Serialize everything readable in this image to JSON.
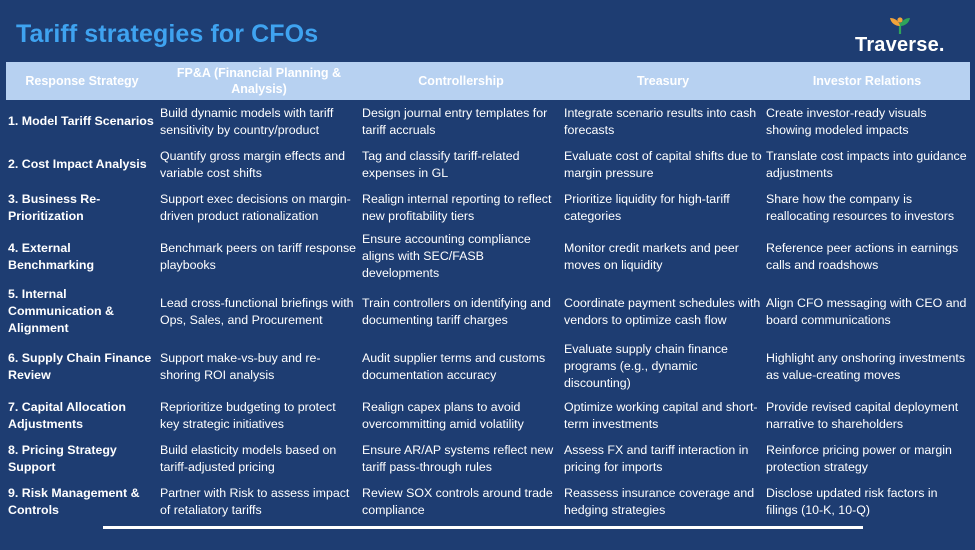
{
  "title": "Tariff strategies for CFOs",
  "logo": {
    "text": "Traverse.",
    "icon": "leaf-sprout-icon",
    "colors": {
      "leaf_orange": "#f2a33a",
      "leaf_green": "#2fa45a"
    }
  },
  "colors": {
    "background": "#1e3d72",
    "title": "#3fa3f0",
    "header_bg": "#b7d1f1",
    "text": "#ffffff"
  },
  "table": {
    "headers": [
      "Response Strategy",
      "FP&A (Financial Planning & Analysis)",
      "Controllership",
      "Treasury",
      "Investor Relations"
    ],
    "rows": [
      [
        "1. Model Tariff Scenarios",
        "Build dynamic models with tariff sensitivity by country/product",
        "Design journal entry templates for tariff accruals",
        "Integrate scenario results into cash forecasts",
        "Create investor-ready visuals showing modeled impacts"
      ],
      [
        "2. Cost Impact Analysis",
        "Quantify gross margin effects and variable cost shifts",
        "Tag and classify tariff-related expenses in GL",
        "Evaluate cost of capital shifts due to margin pressure",
        "Translate cost impacts into guidance adjustments"
      ],
      [
        "3. Business Re-Prioritization",
        "Support exec decisions on margin-driven product rationalization",
        "Realign internal reporting to reflect new profitability tiers",
        "Prioritize liquidity for high-tariff categories",
        "Share how the company is reallocating resources to investors"
      ],
      [
        "4. External Benchmarking",
        "Benchmark peers on tariff response playbooks",
        "Ensure accounting compliance aligns with SEC/FASB developments",
        "Monitor credit markets and peer moves on liquidity",
        "Reference peer actions in earnings calls and roadshows"
      ],
      [
        "5. Internal Communication & Alignment",
        "Lead cross-functional briefings with Ops, Sales, and Procurement",
        "Train controllers on identifying and documenting tariff charges",
        "Coordinate payment schedules with vendors to optimize cash flow",
        "Align CFO messaging with CEO and board communications"
      ],
      [
        "6. Supply Chain Finance Review",
        "Support make-vs-buy and re-shoring ROI analysis",
        "Audit supplier terms and customs documentation accuracy",
        "Evaluate supply chain finance programs (e.g., dynamic discounting)",
        "Highlight any onshoring investments as value-creating moves"
      ],
      [
        "7. Capital Allocation Adjustments",
        "Reprioritize budgeting to protect key strategic initiatives",
        "Realign capex plans to avoid overcommitting amid volatility",
        "Optimize working capital and short-term investments",
        "Provide revised capital deployment narrative to shareholders"
      ],
      [
        "8. Pricing Strategy Support",
        "Build elasticity models based on tariff-adjusted pricing",
        "Ensure AR/AP systems reflect new tariff pass-through rules",
        "Assess FX and tariff interaction in pricing for imports",
        "Reinforce pricing power or margin protection strategy"
      ],
      [
        "9. Risk Management & Controls",
        "Partner with Risk to assess impact of retaliatory tariffs",
        "Review SOX controls around trade compliance",
        "Reassess insurance coverage and hedging strategies",
        "Disclose updated risk factors in filings (10-K, 10-Q)"
      ]
    ]
  }
}
